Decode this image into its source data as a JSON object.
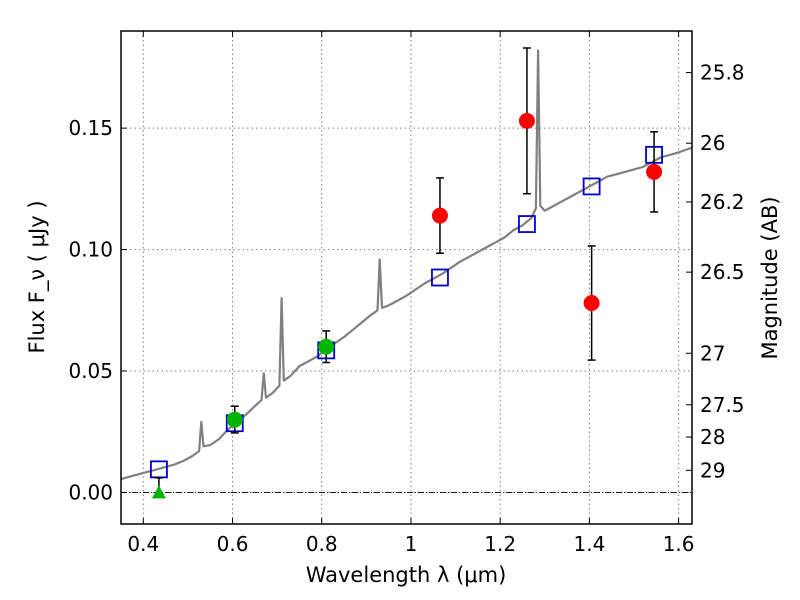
{
  "chart_data": {
    "type": "scatter",
    "title": "",
    "xlabel": "Wavelength  λ (μm)",
    "ylabel": "Flux  F_ν  ( μJy )",
    "ylabel_right": "Magnitude (AB)",
    "xlim": [
      0.35,
      1.63
    ],
    "ylim": [
      -0.013,
      0.19
    ],
    "grid": true,
    "x_ticks": [
      0.4,
      0.6,
      0.8,
      1.0,
      1.2,
      1.4,
      1.6
    ],
    "x_tick_labels": [
      "0.4",
      "0.6",
      "0.8",
      "1",
      "1.2",
      "1.4",
      "1.6"
    ],
    "y_ticks": [
      0.0,
      0.05,
      0.1,
      0.15
    ],
    "y_tick_labels": [
      "0.00",
      "0.05",
      "0.10",
      "0.15"
    ],
    "right_ticks": [
      {
        "label": "25.8",
        "flux": 0.1729
      },
      {
        "label": "26",
        "flux": 0.1438
      },
      {
        "label": "26.2",
        "flux": 0.1196
      },
      {
        "label": "26.5",
        "flux": 0.0907
      },
      {
        "label": "27",
        "flux": 0.0573
      },
      {
        "label": "27.5",
        "flux": 0.0361
      },
      {
        "label": "28",
        "flux": 0.0228
      },
      {
        "label": "29",
        "flux": 0.0091
      }
    ],
    "zero_line": 0.0,
    "colors": {
      "model": "#808080",
      "red_points": "#ff0000",
      "green_points": "#00b400",
      "squares": "#0000cc",
      "errorbars": "#000000"
    },
    "series": [
      {
        "kind": "model-spectrum",
        "x": [
          0.35,
          0.37,
          0.39,
          0.41,
          0.43,
          0.45,
          0.47,
          0.49,
          0.51,
          0.525,
          0.53,
          0.535,
          0.55,
          0.57,
          0.59,
          0.61,
          0.63,
          0.65,
          0.665,
          0.67,
          0.675,
          0.69,
          0.705,
          0.71,
          0.715,
          0.73,
          0.75,
          0.77,
          0.79,
          0.81,
          0.83,
          0.85,
          0.87,
          0.89,
          0.91,
          0.925,
          0.93,
          0.935,
          0.95,
          0.97,
          0.99,
          1.01,
          1.03,
          1.05,
          1.07,
          1.09,
          1.11,
          1.13,
          1.15,
          1.17,
          1.19,
          1.21,
          1.23,
          1.25,
          1.27,
          1.28,
          1.285,
          1.29,
          1.3,
          1.32,
          1.34,
          1.36,
          1.38,
          1.4,
          1.42,
          1.44,
          1.46,
          1.48,
          1.5,
          1.52,
          1.54,
          1.56,
          1.58,
          1.6,
          1.63
        ],
        "y": [
          0.0055,
          0.0065,
          0.0075,
          0.0085,
          0.0095,
          0.0105,
          0.0115,
          0.013,
          0.015,
          0.017,
          0.029,
          0.019,
          0.0195,
          0.022,
          0.026,
          0.029,
          0.032,
          0.0355,
          0.038,
          0.049,
          0.039,
          0.041,
          0.044,
          0.08,
          0.046,
          0.048,
          0.052,
          0.054,
          0.056,
          0.059,
          0.0615,
          0.064,
          0.067,
          0.07,
          0.073,
          0.075,
          0.096,
          0.076,
          0.077,
          0.079,
          0.081,
          0.0835,
          0.086,
          0.088,
          0.09,
          0.0925,
          0.095,
          0.097,
          0.099,
          0.101,
          0.103,
          0.105,
          0.108,
          0.11,
          0.113,
          0.117,
          0.182,
          0.118,
          0.116,
          0.118,
          0.12,
          0.122,
          0.124,
          0.126,
          0.128,
          0.13,
          0.131,
          0.132,
          0.133,
          0.134,
          0.136,
          0.138,
          0.139,
          0.14,
          0.142
        ]
      },
      {
        "kind": "measured-flux",
        "marker": "circle",
        "color": "red",
        "points": [
          {
            "x": 1.065,
            "y": 0.114,
            "err": 0.0155
          },
          {
            "x": 1.26,
            "y": 0.153,
            "err": 0.03
          },
          {
            "x": 1.405,
            "y": 0.078,
            "err": 0.0235
          },
          {
            "x": 1.545,
            "y": 0.132,
            "err": 0.0165
          }
        ]
      },
      {
        "kind": "measured-flux",
        "marker": "circle",
        "color": "green",
        "points": [
          {
            "x": 0.605,
            "y": 0.03,
            "err": 0.0055
          },
          {
            "x": 0.81,
            "y": 0.06,
            "err": 0.0065
          }
        ]
      },
      {
        "kind": "upper-limit",
        "marker": "triangle",
        "color": "green",
        "points": [
          {
            "x": 0.435,
            "y": 0.0,
            "err_up": 0.006
          }
        ]
      },
      {
        "kind": "model-photometry",
        "marker": "square",
        "color": "blue",
        "points": [
          {
            "x": 0.435,
            "y": 0.0095
          },
          {
            "x": 0.605,
            "y": 0.0285
          },
          {
            "x": 0.81,
            "y": 0.0585
          },
          {
            "x": 1.065,
            "y": 0.0885
          },
          {
            "x": 1.26,
            "y": 0.1105
          },
          {
            "x": 1.405,
            "y": 0.126
          },
          {
            "x": 1.545,
            "y": 0.139
          }
        ]
      }
    ]
  }
}
